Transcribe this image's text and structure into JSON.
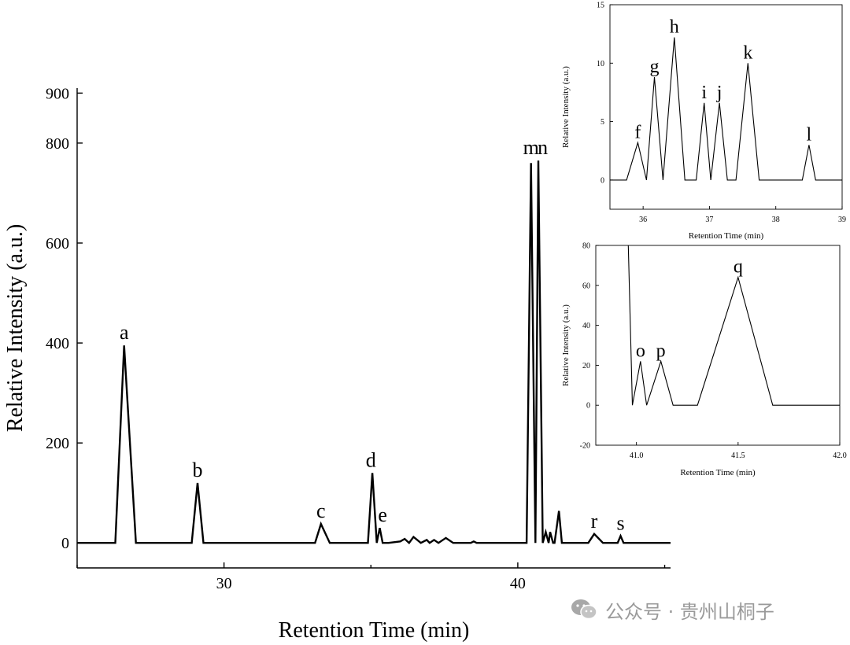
{
  "chart_data": [
    {
      "id": "main",
      "type": "line",
      "title": "",
      "xlabel": "Retention Time (min)",
      "ylabel": "Relative Intensity (a.u.)",
      "xlim": [
        25,
        45.2
      ],
      "ylim": [
        -50,
        910
      ],
      "xticks": [
        30,
        40
      ],
      "yticks": [
        0,
        200,
        400,
        600,
        800,
        900
      ],
      "series": [
        {
          "name": "chromatogram",
          "x": [
            25,
            26.3,
            26.6,
            27.0,
            27.3,
            28.9,
            29.1,
            29.3,
            29.6,
            33.1,
            33.3,
            33.6,
            34.9,
            35.05,
            35.2,
            35.3,
            35.4,
            35.6,
            36.0,
            36.15,
            36.3,
            36.45,
            36.7,
            36.9,
            37.0,
            37.15,
            37.3,
            37.55,
            37.8,
            38.4,
            38.5,
            38.6,
            40.3,
            40.45,
            40.6,
            40.7,
            40.85,
            40.95,
            41.05,
            41.1,
            41.2,
            41.25,
            41.4,
            41.5,
            41.65,
            42.4,
            42.6,
            42.9,
            43.4,
            43.5,
            43.6,
            45.2
          ],
          "y": [
            0,
            0,
            395,
            0,
            0,
            0,
            120,
            0,
            0,
            0,
            38,
            0,
            0,
            140,
            0,
            30,
            0,
            0,
            3,
            8,
            0,
            12,
            0,
            6,
            0,
            6,
            0,
            10,
            0,
            0,
            3,
            0,
            0,
            760,
            0,
            765,
            0,
            22,
            0,
            22,
            0,
            0,
            64,
            0,
            0,
            0,
            18,
            0,
            0,
            14,
            0,
            0
          ]
        }
      ],
      "peak_labels": [
        {
          "label": "a",
          "x": 26.6,
          "y": 395
        },
        {
          "label": "b",
          "x": 29.1,
          "y": 120
        },
        {
          "label": "c",
          "x": 33.3,
          "y": 38
        },
        {
          "label": "d",
          "x": 35.0,
          "y": 140
        },
        {
          "label": "e",
          "x": 35.4,
          "y": 30
        },
        {
          "label": "m",
          "x": 40.45,
          "y": 765
        },
        {
          "label": "n",
          "x": 40.85,
          "y": 765
        },
        {
          "label": "r",
          "x": 42.6,
          "y": 18
        },
        {
          "label": "s",
          "x": 43.5,
          "y": 14
        }
      ]
    },
    {
      "id": "inset1",
      "type": "line",
      "title": "",
      "xlabel": "Retention Time (min)",
      "ylabel": "Relative Intensity (a.u.)",
      "xlim": [
        35.5,
        39
      ],
      "ylim": [
        -2.5,
        15
      ],
      "xticks": [
        36,
        37,
        38,
        39
      ],
      "yticks": [
        0,
        5,
        10,
        15
      ],
      "series": [
        {
          "name": "chromatogram-zoom",
          "x": [
            35.5,
            35.75,
            35.92,
            36.05,
            36.17,
            36.3,
            36.47,
            36.63,
            36.8,
            36.92,
            37.02,
            37.15,
            37.27,
            37.4,
            37.58,
            37.75,
            38.4,
            38.5,
            38.6,
            39.0
          ],
          "y": [
            0,
            0,
            3.2,
            0,
            8.8,
            0,
            12.2,
            0,
            0,
            6.6,
            0,
            6.6,
            0,
            0,
            10.0,
            0,
            0,
            3.0,
            0,
            0
          ]
        }
      ],
      "peak_labels": [
        {
          "label": "f",
          "x": 35.92,
          "y": 3.2
        },
        {
          "label": "g",
          "x": 36.17,
          "y": 8.8
        },
        {
          "label": "h",
          "x": 36.47,
          "y": 12.2
        },
        {
          "label": "i",
          "x": 36.92,
          "y": 6.6
        },
        {
          "label": "j",
          "x": 37.15,
          "y": 6.6
        },
        {
          "label": "k",
          "x": 37.58,
          "y": 10.0
        },
        {
          "label": "l",
          "x": 38.5,
          "y": 3.0
        }
      ]
    },
    {
      "id": "inset2",
      "type": "line",
      "title": "",
      "xlabel": "Retention Time (min)",
      "ylabel": "Relative Intensity (a.u.)",
      "xlim": [
        40.8,
        42.0
      ],
      "ylim": [
        -20,
        80
      ],
      "xticks": [
        41.0,
        41.5,
        42.0
      ],
      "xticklabels": [
        "41.0",
        "41.5",
        "42.0"
      ],
      "yticks": [
        -20,
        0,
        20,
        40,
        60,
        80
      ],
      "series": [
        {
          "name": "chromatogram-zoom",
          "x": [
            40.96,
            40.98,
            41.02,
            41.05,
            41.12,
            41.18,
            41.3,
            41.5,
            41.67,
            42.0
          ],
          "y": [
            80,
            0,
            22,
            0,
            22,
            0,
            0,
            64,
            0,
            0
          ]
        }
      ],
      "peak_labels": [
        {
          "label": "o",
          "x": 41.02,
          "y": 22
        },
        {
          "label": "p",
          "x": 41.12,
          "y": 22
        },
        {
          "label": "q",
          "x": 41.5,
          "y": 64
        }
      ]
    }
  ],
  "watermark": {
    "text": "公众号 · 贵州山桐子",
    "icon": "wechat-icon"
  }
}
